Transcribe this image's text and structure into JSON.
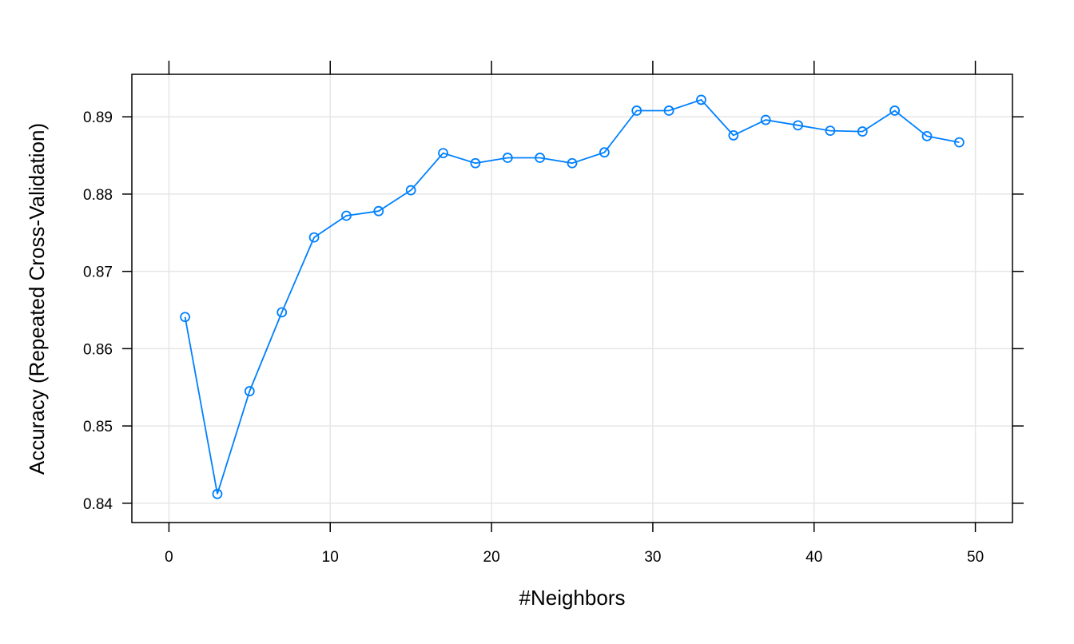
{
  "chart_data": {
    "type": "line",
    "xlabel": "#Neighbors",
    "ylabel": "Accuracy (Repeated Cross-Validation)",
    "xlim": [
      -2.3,
      52.3
    ],
    "ylim": [
      0.8375,
      0.8955
    ],
    "xticks": [
      0,
      10,
      20,
      30,
      40,
      50
    ],
    "yticks": [
      0.84,
      0.85,
      0.86,
      0.87,
      0.88,
      0.89
    ],
    "xtick_labels": [
      "0",
      "10",
      "20",
      "30",
      "40",
      "50"
    ],
    "ytick_labels": [
      "0.84",
      "0.85",
      "0.86",
      "0.87",
      "0.88",
      "0.89"
    ],
    "grid": true,
    "markers": "open-circle",
    "color": "#0080ff",
    "series": [
      {
        "x": [
          1,
          3,
          5,
          7,
          9,
          11,
          13,
          15,
          17,
          19,
          21,
          23,
          25,
          27,
          29,
          31,
          33,
          35,
          37,
          39,
          41,
          43,
          45,
          47,
          49
        ],
        "y": [
          0.8641,
          0.8412,
          0.8545,
          0.8647,
          0.8744,
          0.8772,
          0.8778,
          0.8805,
          0.8853,
          0.884,
          0.8847,
          0.8847,
          0.884,
          0.8854,
          0.8908,
          0.8908,
          0.8922,
          0.8876,
          0.8896,
          0.8889,
          0.8882,
          0.8881,
          0.8908,
          0.8875,
          0.8867
        ]
      }
    ]
  }
}
